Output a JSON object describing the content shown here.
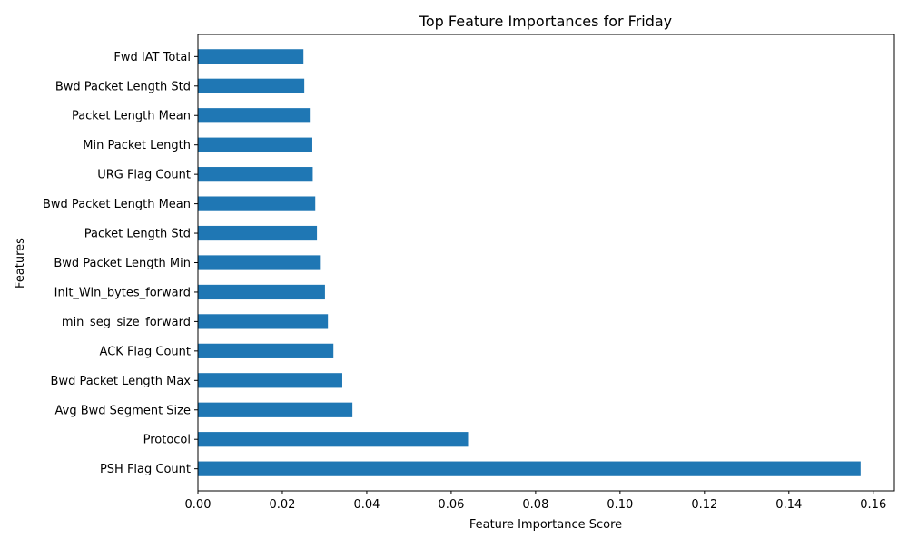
{
  "chart_data": {
    "type": "bar",
    "orientation": "horizontal",
    "title": "Top Feature Importances for Friday",
    "xlabel": "Feature Importance Score",
    "ylabel": "Features",
    "xlim": [
      0,
      0.165
    ],
    "xticks": [
      0.0,
      0.02,
      0.04,
      0.06,
      0.08,
      0.1,
      0.12,
      0.14,
      0.16
    ],
    "xtick_labels": [
      "0.00",
      "0.02",
      "0.04",
      "0.06",
      "0.08",
      "0.10",
      "0.12",
      "0.14",
      "0.16"
    ],
    "grid": false,
    "bar_color": "#1f77b4",
    "categories": [
      "PSH Flag Count",
      "Protocol",
      "Avg Bwd Segment Size",
      "Bwd Packet Length Max",
      "ACK Flag Count",
      "min_seg_size_forward",
      "Init_Win_bytes_forward",
      "Bwd Packet Length Min",
      "Packet Length Std",
      "Bwd Packet Length Mean",
      "URG Flag Count",
      "Min Packet Length",
      "Packet Length Mean",
      "Bwd Packet Length Std",
      "Fwd IAT Total"
    ],
    "values": [
      0.157,
      0.064,
      0.0366,
      0.0342,
      0.0321,
      0.0308,
      0.0301,
      0.0289,
      0.0282,
      0.0278,
      0.0272,
      0.0271,
      0.0265,
      0.0252,
      0.025
    ]
  }
}
